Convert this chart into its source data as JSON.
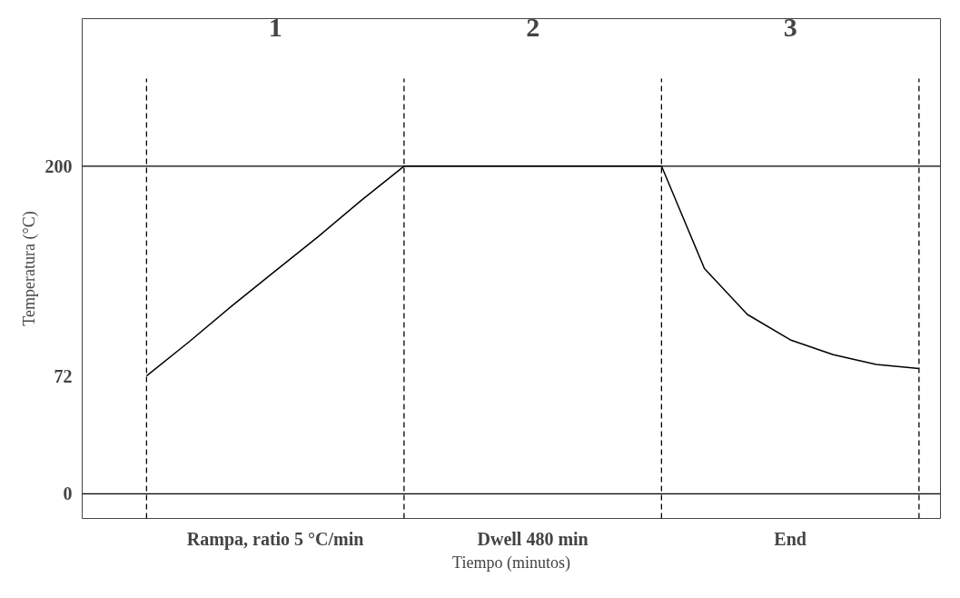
{
  "chart_data": {
    "type": "line",
    "xlabel": "Tiempo (minutos)",
    "ylabel": "Temperatura (°C)",
    "categories": [
      null,
      null,
      null,
      null,
      null,
      null,
      null,
      null,
      null,
      null,
      null,
      null,
      null,
      null,
      null,
      null,
      null,
      null,
      null
    ],
    "series": [
      {
        "color": "#000000",
        "values": [
          72,
          93,
          115,
          136,
          157,
          179,
          200,
          200,
          200,
          200,
          200,
          200,
          200,
          137.5,
          109.5,
          94,
          85,
          79,
          76.5
        ]
      }
    ],
    "ylim": [
      -15,
      290
    ],
    "yticks": [
      0,
      72,
      200
    ],
    "annotations": [
      "1",
      "2",
      "3",
      "Rampa, ratio 5 °C/min",
      "Dwell 480 min",
      "End"
    ],
    "ref_lines": [
      {
        "axis": "y",
        "value": 0,
        "color": "#000000",
        "line_style": "solid"
      },
      {
        "axis": "y",
        "value": 200,
        "color": "#000000",
        "line_style": "solid"
      }
    ],
    "grid": "x",
    "marker": "none",
    "line_style": "solid"
  }
}
